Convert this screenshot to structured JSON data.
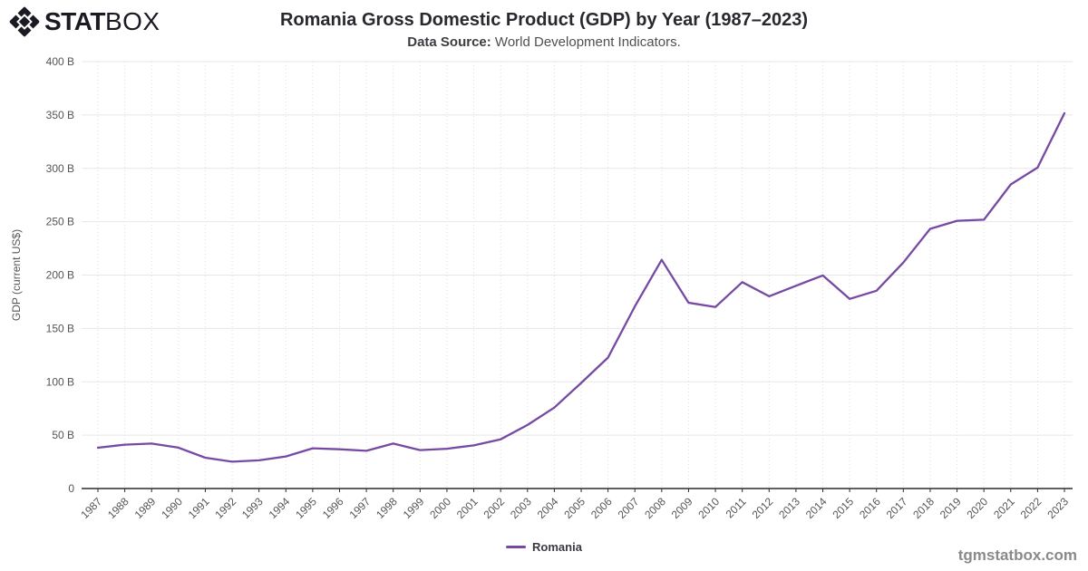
{
  "logo": {
    "stat": "STAT",
    "box": "BOX"
  },
  "header": {
    "title": "Romania Gross Domestic Product (GDP) by Year (1987–2023)",
    "subtitle_label": "Data Source:",
    "subtitle_text": " World Development Indicators."
  },
  "chart_data": {
    "type": "line",
    "title": "Romania Gross Domestic Product (GDP) by Year (1987–2023)",
    "x": [
      1987,
      1988,
      1989,
      1990,
      1991,
      1992,
      1993,
      1994,
      1995,
      1996,
      1997,
      1998,
      1999,
      2000,
      2001,
      2002,
      2003,
      2004,
      2005,
      2006,
      2007,
      2008,
      2009,
      2010,
      2011,
      2012,
      2013,
      2014,
      2015,
      2016,
      2017,
      2018,
      2019,
      2020,
      2021,
      2022,
      2023
    ],
    "series": [
      {
        "name": "Romania",
        "values": [
          38.2,
          41.1,
          42.1,
          38.3,
          28.9,
          25.1,
          26.4,
          30.1,
          37.7,
          36.8,
          35.3,
          42.1,
          36.0,
          37.3,
          40.4,
          46.1,
          59.5,
          75.8,
          98.9,
          122.7,
          170.6,
          214.3,
          174.1,
          170.1,
          193.4,
          180.1,
          190.0,
          199.7,
          177.7,
          185.3,
          211.7,
          243.3,
          250.9,
          251.9,
          284.9,
          300.7,
          351.7
        ]
      }
    ],
    "xlabel": "",
    "ylabel": "GDP (current US$)",
    "ylim": [
      0,
      400
    ],
    "ytick_values": [
      0,
      50,
      100,
      150,
      200,
      250,
      300,
      350,
      400
    ],
    "ytick_labels": [
      "0",
      "50 B",
      "100 B",
      "150 B",
      "200 B",
      "250 B",
      "300 B",
      "350 B",
      "400 B"
    ],
    "grid": true,
    "legend_position": "bottom",
    "unit": "billions USD"
  },
  "legend": {
    "label": "Romania"
  },
  "footer": {
    "watermark": "tgmstatbox.com"
  },
  "colors": {
    "line": "#7649a3",
    "axis": "#2b2b2b",
    "h_grid": "#e7e7e7",
    "v_grid": "#dcdcdc",
    "tick_text": "#555555",
    "logo": "#1a1a23"
  }
}
